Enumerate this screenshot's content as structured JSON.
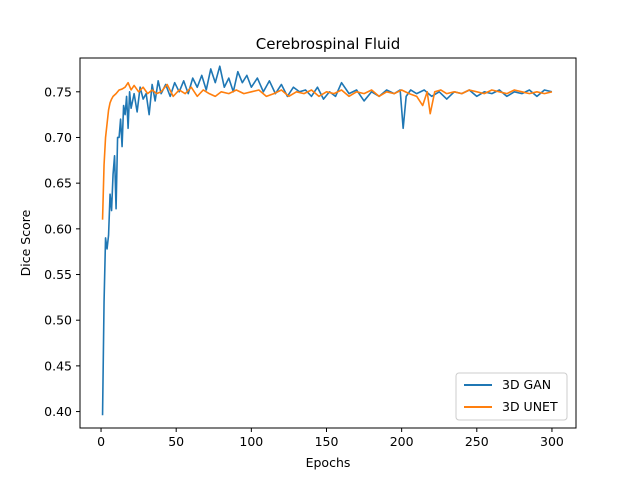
{
  "chart_data": {
    "type": "line",
    "title": "Cerebrospinal Fluid",
    "xlabel": "Epochs",
    "ylabel": "Dice Score",
    "xlim": [
      -14,
      316
    ],
    "ylim": [
      0.382,
      0.787
    ],
    "xticks": [
      0,
      50,
      100,
      150,
      200,
      250,
      300
    ],
    "yticks": [
      0.4,
      0.45,
      0.5,
      0.55,
      0.6,
      0.65,
      0.7,
      0.75
    ],
    "xtick_labels": [
      "0",
      "50",
      "100",
      "150",
      "200",
      "250",
      "300"
    ],
    "ytick_labels": [
      "0.40",
      "0.45",
      "0.50",
      "0.55",
      "0.60",
      "0.65",
      "0.70",
      "0.75"
    ],
    "legend_position": "lower-right",
    "grid": false,
    "series": [
      {
        "name": "3D GAN",
        "color": "#1f77b4",
        "x": [
          1,
          2,
          3,
          4,
          5,
          6,
          7,
          8,
          9,
          10,
          11,
          12,
          13,
          14,
          15,
          16,
          17,
          18,
          19,
          20,
          22,
          24,
          26,
          28,
          30,
          32,
          34,
          36,
          38,
          40,
          43,
          46,
          49,
          52,
          55,
          58,
          61,
          64,
          67,
          70,
          73,
          76,
          79,
          82,
          85,
          88,
          91,
          94,
          97,
          100,
          104,
          108,
          112,
          116,
          120,
          124,
          128,
          132,
          136,
          140,
          144,
          148,
          152,
          156,
          160,
          165,
          170,
          175,
          180,
          185,
          190,
          195,
          199,
          201,
          203,
          206,
          210,
          215,
          220,
          225,
          230,
          235,
          240,
          245,
          250,
          255,
          260,
          265,
          270,
          275,
          280,
          285,
          290,
          295,
          300
        ],
        "y": [
          0.396,
          0.52,
          0.59,
          0.578,
          0.593,
          0.638,
          0.62,
          0.66,
          0.68,
          0.622,
          0.7,
          0.7,
          0.72,
          0.69,
          0.735,
          0.725,
          0.745,
          0.71,
          0.75,
          0.732,
          0.748,
          0.728,
          0.755,
          0.742,
          0.748,
          0.725,
          0.758,
          0.74,
          0.762,
          0.748,
          0.758,
          0.745,
          0.76,
          0.75,
          0.762,
          0.748,
          0.765,
          0.755,
          0.768,
          0.752,
          0.775,
          0.76,
          0.778,
          0.755,
          0.765,
          0.75,
          0.772,
          0.76,
          0.768,
          0.755,
          0.765,
          0.75,
          0.762,
          0.748,
          0.758,
          0.745,
          0.755,
          0.75,
          0.752,
          0.745,
          0.755,
          0.742,
          0.75,
          0.745,
          0.76,
          0.748,
          0.752,
          0.74,
          0.75,
          0.745,
          0.752,
          0.748,
          0.752,
          0.71,
          0.745,
          0.752,
          0.748,
          0.752,
          0.745,
          0.75,
          0.742,
          0.75,
          0.748,
          0.752,
          0.745,
          0.75,
          0.748,
          0.752,
          0.745,
          0.75,
          0.748,
          0.752,
          0.745,
          0.752,
          0.75
        ]
      },
      {
        "name": "3D UNET",
        "color": "#ff7f0e",
        "x": [
          1,
          2,
          3,
          4,
          5,
          6,
          7,
          8,
          10,
          12,
          14,
          16,
          18,
          20,
          22,
          25,
          28,
          31,
          34,
          37,
          40,
          44,
          48,
          52,
          56,
          60,
          64,
          68,
          72,
          76,
          80,
          85,
          90,
          95,
          100,
          105,
          110,
          115,
          120,
          125,
          130,
          135,
          140,
          145,
          150,
          155,
          160,
          165,
          170,
          175,
          180,
          185,
          190,
          195,
          200,
          205,
          210,
          214,
          217,
          219,
          222,
          226,
          230,
          235,
          240,
          245,
          250,
          255,
          260,
          265,
          270,
          275,
          280,
          285,
          290,
          295,
          300
        ],
        "y": [
          0.61,
          0.67,
          0.7,
          0.715,
          0.73,
          0.738,
          0.742,
          0.745,
          0.748,
          0.752,
          0.753,
          0.755,
          0.76,
          0.752,
          0.757,
          0.75,
          0.755,
          0.748,
          0.752,
          0.748,
          0.75,
          0.758,
          0.745,
          0.752,
          0.748,
          0.755,
          0.745,
          0.752,
          0.748,
          0.745,
          0.75,
          0.748,
          0.752,
          0.748,
          0.75,
          0.752,
          0.745,
          0.748,
          0.752,
          0.745,
          0.75,
          0.748,
          0.752,
          0.745,
          0.75,
          0.748,
          0.752,
          0.745,
          0.75,
          0.748,
          0.752,
          0.745,
          0.75,
          0.748,
          0.752,
          0.748,
          0.745,
          0.735,
          0.75,
          0.726,
          0.75,
          0.752,
          0.748,
          0.75,
          0.748,
          0.752,
          0.75,
          0.748,
          0.752,
          0.75,
          0.748,
          0.752,
          0.75,
          0.748,
          0.75,
          0.748,
          0.75
        ]
      }
    ]
  }
}
